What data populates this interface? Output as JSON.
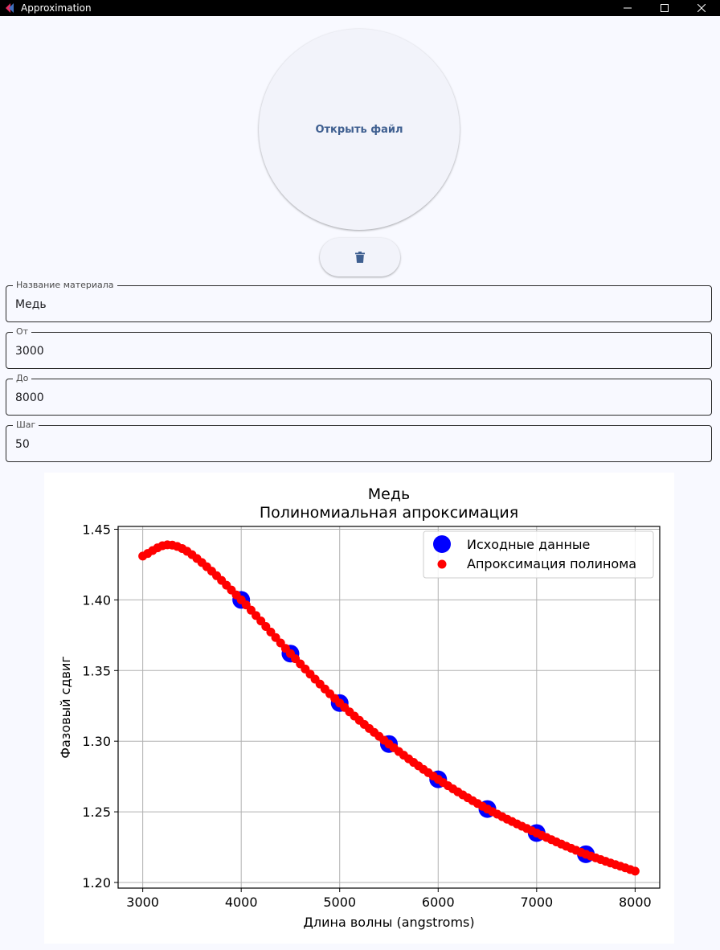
{
  "window": {
    "title": "Approximation",
    "controls": {
      "minimize_icon": "minimize-icon",
      "maximize_icon": "maximize-icon",
      "close_icon": "close-icon"
    }
  },
  "open_file": {
    "label": "Открыть файл"
  },
  "delete_button": {
    "icon": "trash-icon"
  },
  "fields": {
    "material": {
      "label": "Название материала",
      "value": "Медь"
    },
    "from": {
      "label": "От",
      "value": "3000"
    },
    "to": {
      "label": "До",
      "value": "8000"
    },
    "step": {
      "label": "Шаг",
      "value": "50"
    }
  },
  "colors": {
    "accent": "#3f5f90",
    "source_points": "#0000ff",
    "approx_points": "#ff0000"
  },
  "chart_data": {
    "type": "scatter",
    "title": "Медь",
    "subtitle": "Полиномиальная апроксимация",
    "xlabel": "Длина волны (angstroms)",
    "ylabel": "Фазовый сдвиг",
    "xlim": [
      2750,
      8250
    ],
    "ylim": [
      1.196,
      1.452
    ],
    "xticks": [
      3000,
      4000,
      5000,
      6000,
      7000,
      8000
    ],
    "yticks": [
      1.2,
      1.25,
      1.3,
      1.35,
      1.4,
      1.45
    ],
    "xtick_labels": [
      "3000",
      "4000",
      "5000",
      "6000",
      "7000",
      "8000"
    ],
    "ytick_labels": [
      "1.20",
      "1.25",
      "1.30",
      "1.35",
      "1.40",
      "1.45"
    ],
    "grid": true,
    "legend_position": "top-right",
    "series": [
      {
        "name": "Исходные данные",
        "color": "#0000ff",
        "x": [
          4000,
          4500,
          5000,
          5500,
          6000,
          6500,
          7000,
          7500
        ],
        "y": [
          1.4,
          1.362,
          1.327,
          1.298,
          1.273,
          1.252,
          1.235,
          1.22
        ]
      },
      {
        "name": "Апроксимация полинома",
        "color": "#ff0000",
        "x_range": [
          3000,
          8000,
          50
        ],
        "anchor_x": [
          3000,
          3250,
          3500,
          4000,
          4500,
          5000,
          5500,
          6000,
          6500,
          7000,
          7500,
          8000
        ],
        "anchor_y": [
          1.431,
          1.439,
          1.432,
          1.4,
          1.362,
          1.327,
          1.298,
          1.273,
          1.252,
          1.235,
          1.22,
          1.208
        ]
      }
    ]
  }
}
